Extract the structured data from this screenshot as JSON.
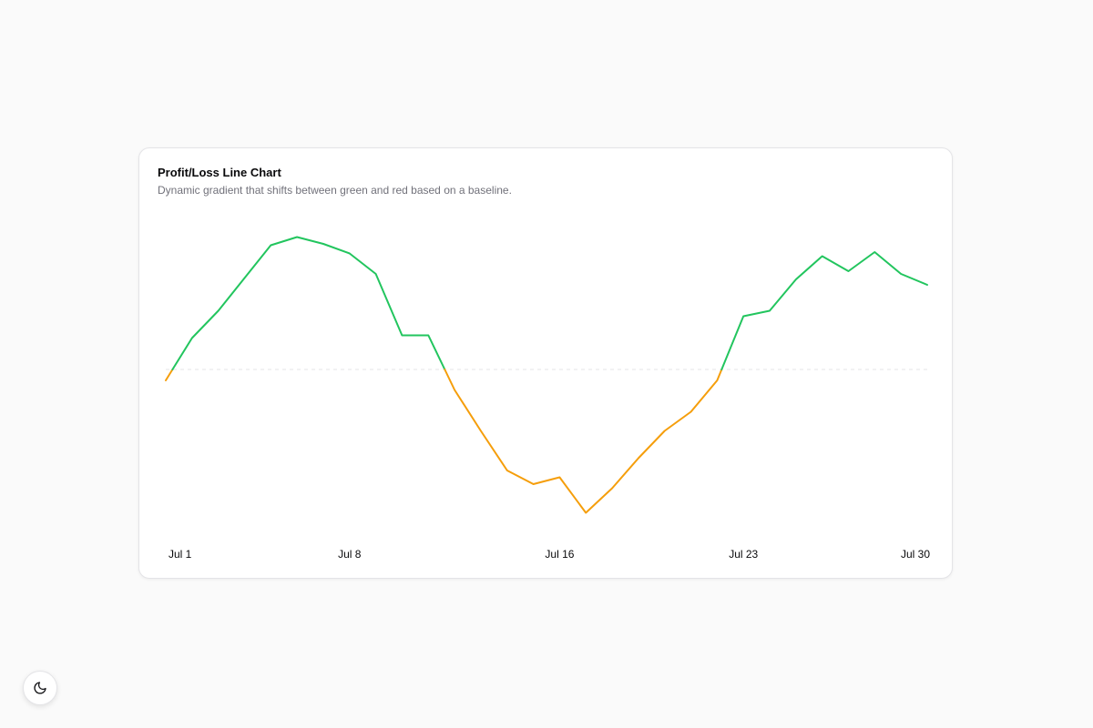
{
  "card": {
    "title": "Profit/Loss Line Chart",
    "subtitle": "Dynamic gradient that shifts between green and red based on a baseline."
  },
  "theme_toggle": {
    "icon": "moon-icon"
  },
  "colors": {
    "positive": "#22c55e",
    "negative": "#f59e0b",
    "baseline": "#e4e4e7"
  },
  "chart_data": {
    "type": "line",
    "baseline": 0,
    "x_ticks": [
      "Jul 1",
      "Jul 8",
      "Jul 16",
      "Jul 23",
      "Jul 30"
    ],
    "x_tick_days": [
      1,
      8,
      16,
      23,
      30
    ],
    "grid": false,
    "legend": "none",
    "series": [
      {
        "x": [
          1,
          2,
          3,
          4,
          5,
          6,
          7,
          8,
          9,
          10,
          11,
          12,
          13,
          14,
          15,
          16,
          17,
          18,
          19,
          20,
          21,
          22,
          23,
          24,
          25,
          26,
          27,
          28,
          29,
          30
        ],
        "values": [
          -8,
          23,
          43,
          67,
          91,
          97,
          92,
          85,
          70,
          25,
          25,
          -15,
          -45,
          -74,
          -84,
          -79,
          -105,
          -87,
          -65,
          -45,
          -31,
          -8,
          39,
          43,
          66,
          83,
          72,
          86,
          70,
          62
        ]
      }
    ]
  }
}
